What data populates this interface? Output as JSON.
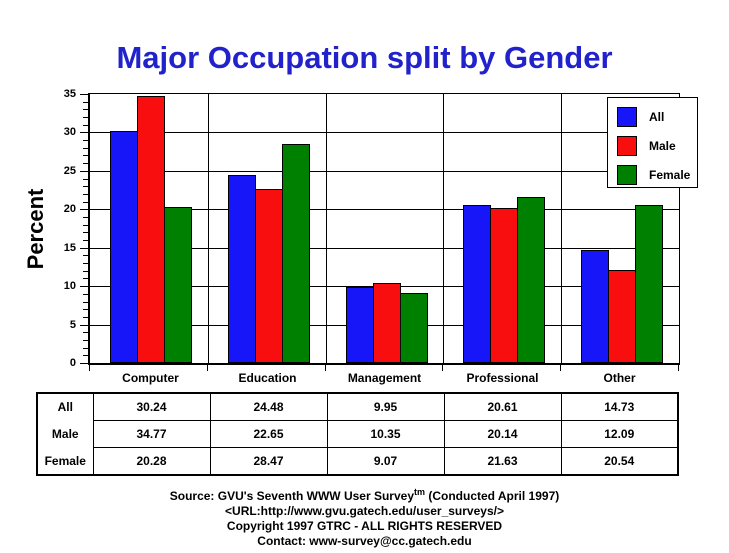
{
  "title": "Major Occupation split by Gender",
  "title_color": "#2222CC",
  "chart_data": {
    "type": "bar",
    "categories": [
      "Computer",
      "Education",
      "Management",
      "Professional",
      "Other"
    ],
    "series": [
      {
        "name": "All",
        "color": "#1616F8",
        "values": [
          "30.24",
          "24.48",
          "9.95",
          "20.61",
          "14.73"
        ]
      },
      {
        "name": "Male",
        "color": "#F80E0E",
        "values": [
          "34.77",
          "22.65",
          "10.35",
          "20.14",
          "12.09"
        ]
      },
      {
        "name": "Female",
        "color": "#008000",
        "values": [
          "20.28",
          "28.47",
          "9.07",
          "21.63",
          "20.54"
        ]
      }
    ],
    "ylabel": "Percent",
    "xlabel": "",
    "ylim": [
      0,
      35
    ],
    "ytick_step": 5,
    "yticks": [
      "0",
      "5",
      "10",
      "15",
      "20",
      "25",
      "30",
      "35"
    ],
    "minor_tick_step": 1,
    "grid": true,
    "legend_position": "top-right",
    "bar_border_color": "#000000"
  },
  "footer": {
    "line1_prefix": "Source: GVU's Seventh WWW User Survey",
    "line1_sup": "tm",
    "line1_suffix": " (Conducted April 1997)",
    "line2": "<URL:http://www.gvu.gatech.edu/user_surveys/>",
    "line3": "Copyright 1997 GTRC - ALL RIGHTS RESERVED",
    "line4": "Contact: www-survey@cc.gatech.edu"
  }
}
